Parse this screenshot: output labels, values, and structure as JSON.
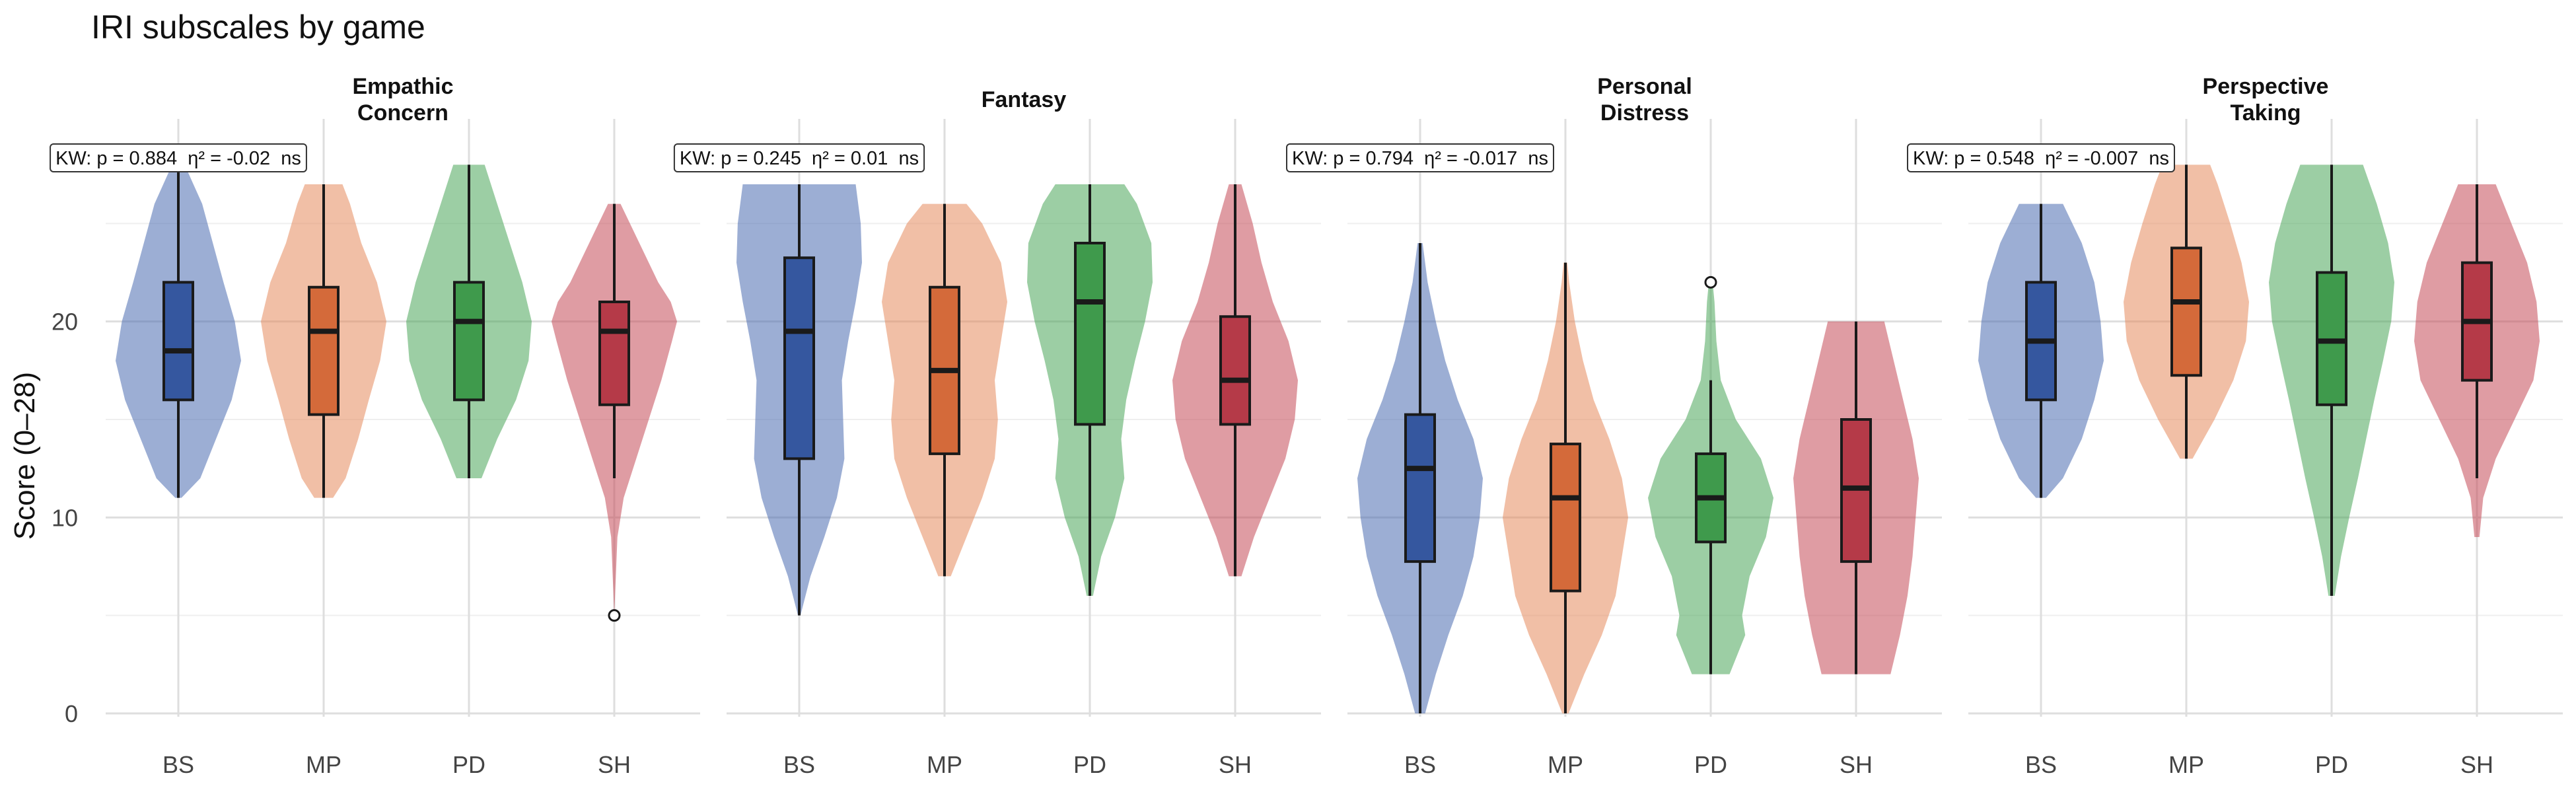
{
  "chart_data": {
    "type": "violin",
    "title": "IRI subscales by game",
    "ylabel": "Score (0–28)",
    "xlabel": "",
    "ylim": [
      0,
      30
    ],
    "yticks": [
      0,
      10,
      20
    ],
    "groups": [
      "BS",
      "MP",
      "PD",
      "SH"
    ],
    "colors": {
      "BS": {
        "fill": "#4a6bb0",
        "box": "#35579f"
      },
      "MP": {
        "fill": "#e58a5c",
        "box": "#d46a3a"
      },
      "PD": {
        "fill": "#4aa55a",
        "box": "#3f9a4c"
      },
      "SH": {
        "fill": "#c44a58",
        "box": "#b53a48"
      }
    },
    "panels": [
      {
        "title_lines": [
          "Empathic",
          "Concern"
        ],
        "annotation": "KW: p = 0.884  η² = -0.02  ns",
        "violins": [
          {
            "group": "BS",
            "min": 11,
            "max": 28,
            "q1": 16,
            "median": 18.5,
            "q3": 22,
            "whisker_low": 11,
            "whisker_high": 28,
            "outliers": [],
            "density": [
              [
                11,
                0.05
              ],
              [
                12,
                0.35
              ],
              [
                14,
                0.6
              ],
              [
                16,
                0.85
              ],
              [
                18,
                1.0
              ],
              [
                20,
                0.9
              ],
              [
                22,
                0.72
              ],
              [
                24,
                0.55
              ],
              [
                26,
                0.38
              ],
              [
                28,
                0.1
              ]
            ]
          },
          {
            "group": "MP",
            "min": 11,
            "max": 27,
            "q1": 15.25,
            "median": 19.5,
            "q3": 21.75,
            "whisker_low": 11,
            "whisker_high": 27,
            "outliers": [],
            "density": [
              [
                11,
                0.15
              ],
              [
                12,
                0.35
              ],
              [
                14,
                0.55
              ],
              [
                16,
                0.72
              ],
              [
                18,
                0.9
              ],
              [
                20,
                1.0
              ],
              [
                22,
                0.85
              ],
              [
                24,
                0.6
              ],
              [
                26,
                0.42
              ],
              [
                27,
                0.3
              ]
            ]
          },
          {
            "group": "PD",
            "min": 12,
            "max": 28,
            "q1": 16,
            "median": 20,
            "q3": 22,
            "whisker_low": 12,
            "whisker_high": 28,
            "outliers": [],
            "density": [
              [
                12,
                0.2
              ],
              [
                14,
                0.45
              ],
              [
                16,
                0.75
              ],
              [
                18,
                0.95
              ],
              [
                20,
                1.0
              ],
              [
                22,
                0.85
              ],
              [
                24,
                0.65
              ],
              [
                26,
                0.45
              ],
              [
                28,
                0.25
              ]
            ]
          },
          {
            "group": "SH",
            "min": 5,
            "max": 26,
            "q1": 15.75,
            "median": 19.5,
            "q3": 21,
            "whisker_low": 12,
            "whisker_high": 26,
            "outliers": [
              5
            ],
            "density": [
              [
                9,
                0.05
              ],
              [
                11,
                0.15
              ],
              [
                13,
                0.35
              ],
              [
                15,
                0.55
              ],
              [
                17,
                0.75
              ],
              [
                19,
                0.92
              ],
              [
                20,
                1.0
              ],
              [
                21,
                0.9
              ],
              [
                22,
                0.7
              ],
              [
                24,
                0.4
              ],
              [
                26,
                0.1
              ]
            ]
          }
        ]
      },
      {
        "title_lines": [
          "Fantasy"
        ],
        "annotation": "KW: p = 0.245  η² = 0.01  ns",
        "violins": [
          {
            "group": "BS",
            "min": 5,
            "max": 27,
            "q1": 13,
            "median": 19.5,
            "q3": 23.25,
            "whisker_low": 5,
            "whisker_high": 27,
            "outliers": [],
            "density": [
              [
                5,
                0.02
              ],
              [
                7,
                0.18
              ],
              [
                9,
                0.4
              ],
              [
                11,
                0.6
              ],
              [
                13,
                0.72
              ],
              [
                15,
                0.7
              ],
              [
                17,
                0.68
              ],
              [
                19,
                0.78
              ],
              [
                21,
                0.9
              ],
              [
                23,
                1.0
              ],
              [
                25,
                0.98
              ],
              [
                27,
                0.9
              ]
            ]
          },
          {
            "group": "MP",
            "min": 7,
            "max": 26,
            "q1": 13.25,
            "median": 17.5,
            "q3": 21.75,
            "whisker_low": 7,
            "whisker_high": 26,
            "outliers": [],
            "density": [
              [
                7,
                0.1
              ],
              [
                9,
                0.35
              ],
              [
                11,
                0.6
              ],
              [
                13,
                0.8
              ],
              [
                15,
                0.85
              ],
              [
                17,
                0.8
              ],
              [
                19,
                0.9
              ],
              [
                21,
                1.0
              ],
              [
                23,
                0.9
              ],
              [
                25,
                0.6
              ],
              [
                26,
                0.35
              ]
            ]
          },
          {
            "group": "PD",
            "min": 6,
            "max": 27,
            "q1": 14.75,
            "median": 21,
            "q3": 24,
            "whisker_low": 6,
            "whisker_high": 27,
            "outliers": [],
            "density": [
              [
                6,
                0.05
              ],
              [
                8,
                0.18
              ],
              [
                10,
                0.4
              ],
              [
                12,
                0.55
              ],
              [
                14,
                0.5
              ],
              [
                16,
                0.58
              ],
              [
                18,
                0.72
              ],
              [
                20,
                0.88
              ],
              [
                22,
                1.0
              ],
              [
                24,
                0.98
              ],
              [
                26,
                0.75
              ],
              [
                27,
                0.55
              ]
            ]
          },
          {
            "group": "SH",
            "min": 7,
            "max": 27,
            "q1": 14.75,
            "median": 17,
            "q3": 20.25,
            "whisker_low": 7,
            "whisker_high": 27,
            "outliers": [],
            "density": [
              [
                7,
                0.1
              ],
              [
                9,
                0.3
              ],
              [
                11,
                0.55
              ],
              [
                13,
                0.8
              ],
              [
                15,
                0.95
              ],
              [
                17,
                1.0
              ],
              [
                19,
                0.85
              ],
              [
                21,
                0.6
              ],
              [
                23,
                0.42
              ],
              [
                25,
                0.28
              ],
              [
                27,
                0.1
              ]
            ]
          }
        ]
      },
      {
        "title_lines": [
          "Personal",
          "Distress"
        ],
        "annotation": "KW: p = 0.794  η² = -0.017  ns",
        "violins": [
          {
            "group": "BS",
            "min": 0,
            "max": 24,
            "q1": 7.75,
            "median": 12.5,
            "q3": 15.25,
            "whisker_low": 0,
            "whisker_high": 24,
            "outliers": [],
            "density": [
              [
                0,
                0.08
              ],
              [
                2,
                0.25
              ],
              [
                4,
                0.45
              ],
              [
                6,
                0.68
              ],
              [
                8,
                0.85
              ],
              [
                10,
                0.95
              ],
              [
                12,
                1.0
              ],
              [
                14,
                0.85
              ],
              [
                16,
                0.6
              ],
              [
                18,
                0.4
              ],
              [
                20,
                0.25
              ],
              [
                22,
                0.12
              ],
              [
                24,
                0.04
              ]
            ]
          },
          {
            "group": "MP",
            "min": 0,
            "max": 23,
            "q1": 6.25,
            "median": 11,
            "q3": 13.75,
            "whisker_low": 0,
            "whisker_high": 23,
            "outliers": [],
            "density": [
              [
                0,
                0.05
              ],
              [
                2,
                0.3
              ],
              [
                4,
                0.58
              ],
              [
                6,
                0.8
              ],
              [
                8,
                0.9
              ],
              [
                10,
                1.0
              ],
              [
                12,
                0.9
              ],
              [
                14,
                0.7
              ],
              [
                16,
                0.45
              ],
              [
                18,
                0.28
              ],
              [
                20,
                0.15
              ],
              [
                22,
                0.06
              ],
              [
                23,
                0.03
              ]
            ]
          },
          {
            "group": "PD",
            "min": 2,
            "max": 22,
            "q1": 8.75,
            "median": 11,
            "q3": 13.25,
            "whisker_low": 2,
            "whisker_high": 17,
            "outliers": [
              22
            ],
            "density": [
              [
                2,
                0.3
              ],
              [
                4,
                0.55
              ],
              [
                5,
                0.5
              ],
              [
                7,
                0.62
              ],
              [
                9,
                0.88
              ],
              [
                11,
                1.0
              ],
              [
                13,
                0.8
              ],
              [
                15,
                0.4
              ],
              [
                17,
                0.16
              ],
              [
                19,
                0.09
              ],
              [
                21,
                0.06
              ],
              [
                22,
                0.03
              ]
            ]
          },
          {
            "group": "SH",
            "min": 2,
            "max": 20,
            "q1": 7.75,
            "median": 11.5,
            "q3": 15,
            "whisker_low": 2,
            "whisker_high": 20,
            "outliers": [],
            "density": [
              [
                2,
                0.55
              ],
              [
                4,
                0.7
              ],
              [
                6,
                0.82
              ],
              [
                8,
                0.9
              ],
              [
                10,
                0.95
              ],
              [
                12,
                1.0
              ],
              [
                14,
                0.9
              ],
              [
                16,
                0.75
              ],
              [
                18,
                0.6
              ],
              [
                20,
                0.45
              ]
            ]
          }
        ]
      },
      {
        "title_lines": [
          "Perspective",
          "Taking"
        ],
        "annotation": "KW: p = 0.548  η² = -0.007  ns",
        "violins": [
          {
            "group": "BS",
            "min": 11,
            "max": 26,
            "q1": 16,
            "median": 19,
            "q3": 22,
            "whisker_low": 11,
            "whisker_high": 26,
            "outliers": [],
            "density": [
              [
                11,
                0.08
              ],
              [
                12,
                0.35
              ],
              [
                14,
                0.65
              ],
              [
                16,
                0.85
              ],
              [
                18,
                1.0
              ],
              [
                20,
                0.95
              ],
              [
                22,
                0.85
              ],
              [
                24,
                0.65
              ],
              [
                26,
                0.35
              ]
            ]
          },
          {
            "group": "MP",
            "min": 13,
            "max": 28,
            "q1": 17.25,
            "median": 21,
            "q3": 23.75,
            "whisker_low": 13,
            "whisker_high": 28,
            "outliers": [],
            "density": [
              [
                13,
                0.1
              ],
              [
                15,
                0.45
              ],
              [
                17,
                0.75
              ],
              [
                19,
                0.95
              ],
              [
                21,
                1.0
              ],
              [
                23,
                0.88
              ],
              [
                25,
                0.7
              ],
              [
                27,
                0.5
              ],
              [
                28,
                0.38
              ]
            ]
          },
          {
            "group": "PD",
            "min": 6,
            "max": 28,
            "q1": 15.75,
            "median": 19,
            "q3": 22.5,
            "whisker_low": 6,
            "whisker_high": 28,
            "outliers": [],
            "density": [
              [
                6,
                0.05
              ],
              [
                8,
                0.15
              ],
              [
                10,
                0.28
              ],
              [
                12,
                0.42
              ],
              [
                14,
                0.55
              ],
              [
                16,
                0.68
              ],
              [
                18,
                0.82
              ],
              [
                20,
                0.95
              ],
              [
                22,
                1.0
              ],
              [
                24,
                0.9
              ],
              [
                26,
                0.72
              ],
              [
                28,
                0.5
              ]
            ]
          },
          {
            "group": "SH",
            "min": 9,
            "max": 27,
            "q1": 17,
            "median": 20,
            "q3": 23,
            "whisker_low": 12,
            "whisker_high": 27,
            "outliers": [],
            "density": [
              [
                9,
                0.04
              ],
              [
                11,
                0.1
              ],
              [
                13,
                0.3
              ],
              [
                15,
                0.6
              ],
              [
                17,
                0.9
              ],
              [
                19,
                1.0
              ],
              [
                21,
                0.95
              ],
              [
                23,
                0.8
              ],
              [
                25,
                0.55
              ],
              [
                27,
                0.3
              ]
            ]
          }
        ]
      }
    ]
  }
}
